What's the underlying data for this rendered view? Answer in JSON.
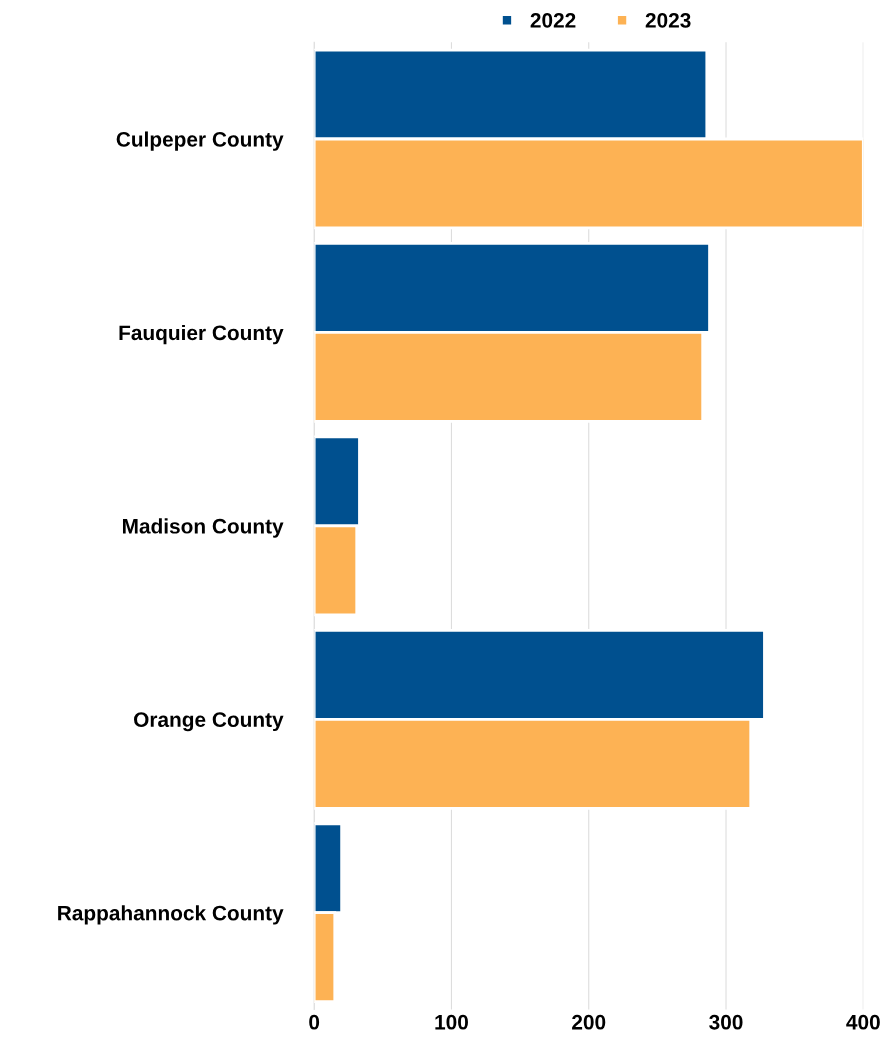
{
  "chart_data": {
    "type": "bar",
    "orientation": "horizontal",
    "categories": [
      "Culpeper County",
      "Fauquier County",
      "Madison County",
      "Orange County",
      "Rappahannock County"
    ],
    "series": [
      {
        "name": "2022",
        "color": "#00508f",
        "values": [
          286,
          288,
          33,
          328,
          20
        ]
      },
      {
        "name": "2023",
        "color": "#fdb254",
        "values": [
          400,
          283,
          31,
          318,
          15
        ]
      }
    ],
    "xlim": [
      0,
      400
    ],
    "xticks": [
      0,
      100,
      200,
      300,
      400
    ],
    "grid": "x",
    "legend": "top"
  }
}
